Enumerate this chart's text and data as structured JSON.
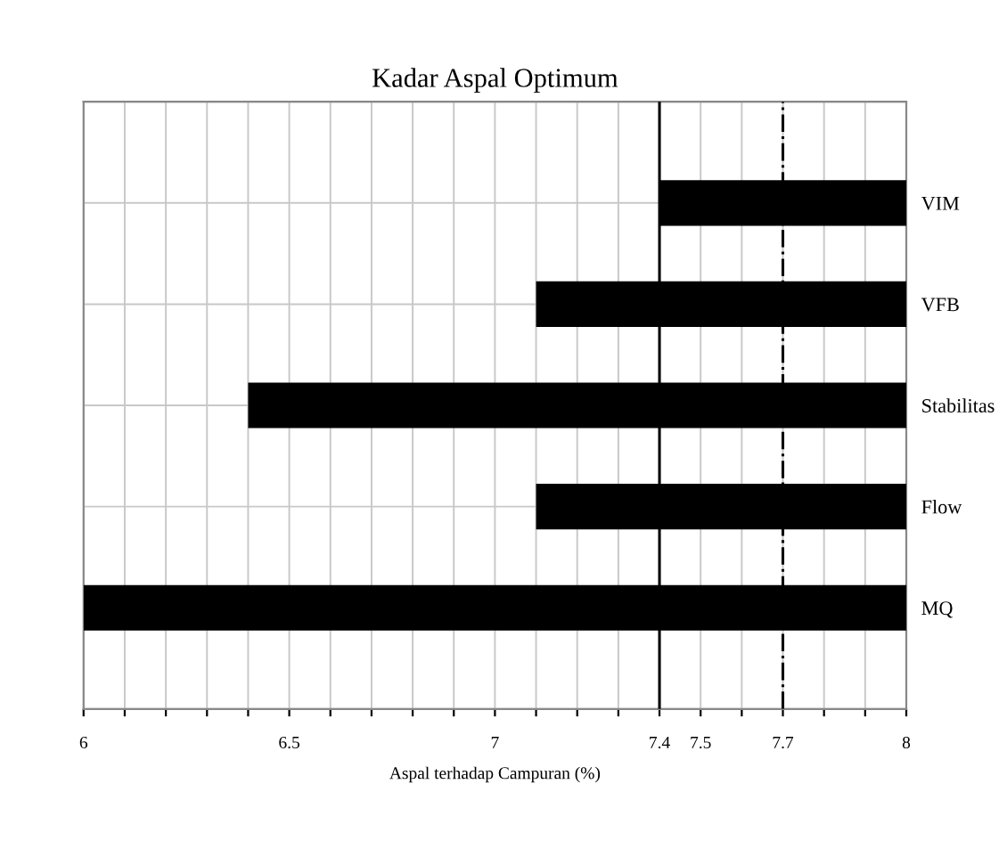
{
  "chart_data": {
    "type": "bar",
    "orientation": "horizontal",
    "title": "Kadar Aspal Optimum",
    "xlabel": "Aspal terhadap Campuran (%)",
    "categories": [
      "VIM",
      "VFB",
      "Stabilitas",
      "Flow",
      "MQ"
    ],
    "base": [
      7.4,
      7.1,
      6.4,
      7.1,
      6.0
    ],
    "values": [
      0.6,
      0.9,
      1.6,
      0.9,
      2.0
    ],
    "color": "#000000",
    "xlim": [
      6,
      8
    ],
    "xticks": [
      6,
      {
        "value": 6.1,
        "label": null
      },
      {
        "value": 6.2,
        "label": null
      },
      {
        "value": 6.3,
        "label": null
      },
      {
        "value": 6.4,
        "label": null
      },
      6.5,
      {
        "value": 6.6,
        "label": null
      },
      {
        "value": 6.7,
        "label": null
      },
      {
        "value": 6.8,
        "label": null
      },
      {
        "value": 6.9,
        "label": null
      },
      7,
      {
        "value": 7.1,
        "label": null
      },
      {
        "value": 7.2,
        "label": null
      },
      {
        "value": 7.3,
        "label": null
      },
      7.4,
      7.5,
      {
        "value": 7.6,
        "label": null
      },
      7.7,
      {
        "value": 7.8,
        "label": null
      },
      {
        "value": 7.9,
        "label": null
      },
      8
    ],
    "ref_lines": [
      {
        "axis": "x",
        "value": 7.4,
        "line_style": "solid",
        "color": "#000000"
      },
      {
        "axis": "x",
        "value": 7.7,
        "line_style": "dashed",
        "color": "#000000"
      }
    ],
    "grid": true
  }
}
